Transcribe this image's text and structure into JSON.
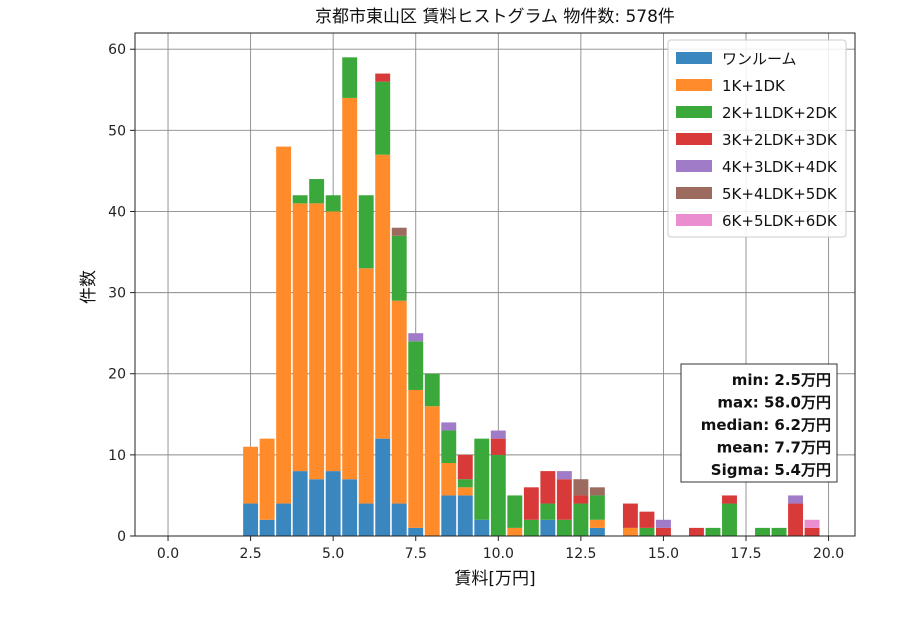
{
  "chart_data": {
    "type": "bar",
    "stacked": true,
    "title": "京都市東山区 賃料ヒストグラム 物件数: 578件",
    "xlabel": "賃料[万円]",
    "ylabel": "件数",
    "xlim": [
      -1.0,
      20.8
    ],
    "ylim": [
      0,
      62
    ],
    "xticks": [
      "0.0",
      "2.5",
      "5.0",
      "7.5",
      "10.0",
      "12.5",
      "15.0",
      "17.5",
      "20.0"
    ],
    "yticks": [
      "0",
      "10",
      "20",
      "30",
      "40",
      "50",
      "60"
    ],
    "grid": true,
    "legend_position": "top-right",
    "bin_width": 0.5,
    "x": [
      2.5,
      3.0,
      3.5,
      4.0,
      4.5,
      5.0,
      5.5,
      6.0,
      6.5,
      7.0,
      7.5,
      8.0,
      8.5,
      9.0,
      9.5,
      10.0,
      10.5,
      11.0,
      11.5,
      12.0,
      12.5,
      13.0,
      13.5,
      14.0,
      14.5,
      15.0,
      15.5,
      16.0,
      16.5,
      17.0,
      17.5,
      18.0,
      18.5,
      19.0,
      19.5
    ],
    "series": [
      {
        "name": "ワンルーム",
        "color": "#3a87c0",
        "values": [
          4,
          2,
          4,
          8,
          7,
          8,
          7,
          4,
          12,
          4,
          1,
          0,
          5,
          5,
          2,
          0,
          0,
          0,
          2,
          0,
          0,
          1,
          0,
          0,
          0,
          0,
          0,
          0,
          0,
          0,
          0,
          0,
          0,
          0,
          0
        ]
      },
      {
        "name": "1K+1DK",
        "color": "#ff8b2b",
        "values": [
          7,
          10,
          44,
          33,
          34,
          32,
          47,
          29,
          35,
          25,
          17,
          16,
          4,
          1,
          0,
          0,
          1,
          0,
          0,
          0,
          0,
          1,
          0,
          1,
          0,
          0,
          0,
          0,
          0,
          0,
          0,
          0,
          0,
          0,
          0
        ]
      },
      {
        "name": "2K+1LDK+2DK",
        "color": "#3aa83a",
        "values": [
          0,
          0,
          0,
          1,
          3,
          2,
          5,
          9,
          9,
          8,
          6,
          4,
          4,
          1,
          10,
          10,
          4,
          2,
          2,
          2,
          4,
          3,
          0,
          0,
          1,
          0,
          0,
          0,
          1,
          4,
          0,
          1,
          1,
          0,
          0
        ]
      },
      {
        "name": "3K+2LDK+3DK",
        "color": "#d83a3a",
        "values": [
          0,
          0,
          0,
          0,
          0,
          0,
          0,
          0,
          1,
          0,
          0,
          0,
          0,
          3,
          0,
          2,
          0,
          4,
          4,
          5,
          1,
          0,
          0,
          3,
          2,
          1,
          0,
          1,
          0,
          1,
          0,
          0,
          0,
          4,
          1
        ]
      },
      {
        "name": "4K+3LDK+4DK",
        "color": "#a07cc8",
        "values": [
          0,
          0,
          0,
          0,
          0,
          0,
          0,
          0,
          0,
          0,
          1,
          0,
          1,
          0,
          0,
          1,
          0,
          0,
          0,
          1,
          0,
          0,
          0,
          0,
          0,
          1,
          0,
          0,
          0,
          0,
          0,
          0,
          0,
          1,
          0
        ]
      },
      {
        "name": "5K+4LDK+5DK",
        "color": "#9c6a5e",
        "values": [
          0,
          0,
          0,
          0,
          0,
          0,
          0,
          0,
          0,
          1,
          0,
          0,
          0,
          0,
          0,
          0,
          0,
          0,
          0,
          0,
          2,
          1,
          0,
          0,
          0,
          0,
          0,
          0,
          0,
          0,
          0,
          0,
          0,
          0,
          0
        ]
      },
      {
        "name": "6K+5LDK+6DK",
        "color": "#ea8ed0",
        "values": [
          0,
          0,
          0,
          0,
          0,
          0,
          0,
          0,
          0,
          0,
          0,
          0,
          0,
          0,
          0,
          0,
          0,
          0,
          0,
          0,
          0,
          0,
          0,
          0,
          0,
          0,
          0,
          0,
          0,
          0,
          0,
          0,
          0,
          0,
          1
        ]
      }
    ],
    "stats_box": {
      "position": "bottom-right",
      "lines": [
        "min: 2.5万円",
        "max: 58.0万円",
        "median: 6.2万円",
        "mean: 7.7万円",
        "Sigma: 5.4万円"
      ]
    }
  }
}
